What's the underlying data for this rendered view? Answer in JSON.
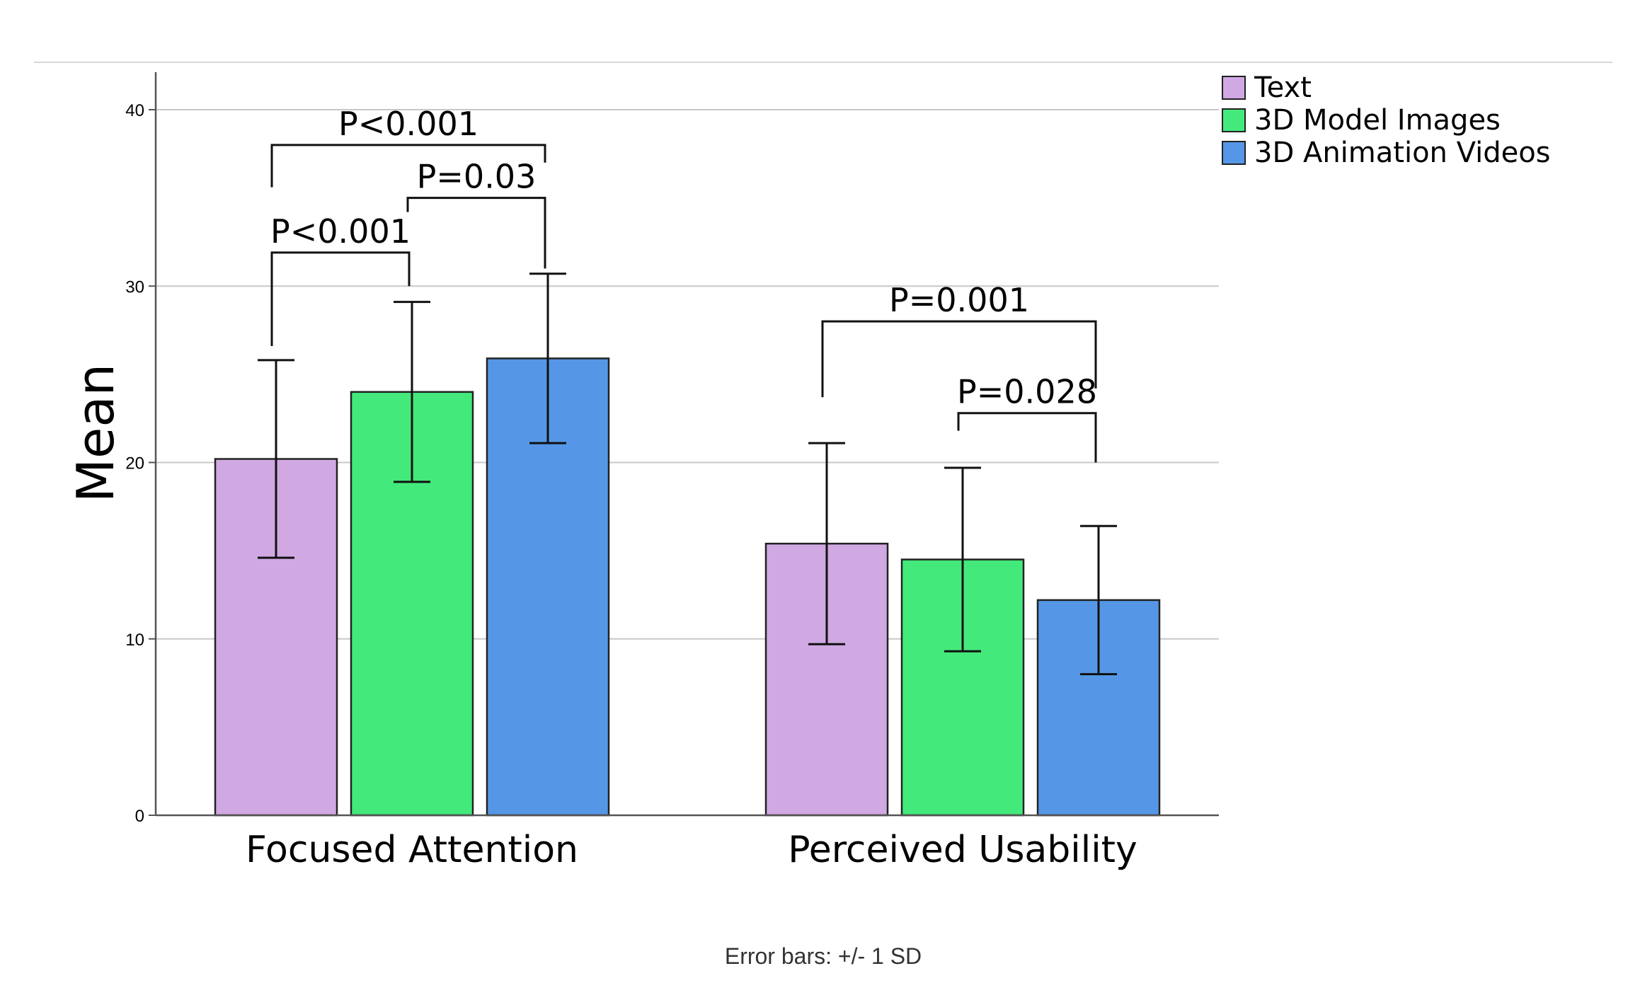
{
  "chart_data": {
    "type": "bar",
    "title": "",
    "xlabel": "",
    "ylabel": "Mean",
    "ylim": [
      0,
      40
    ],
    "yticks": [
      "0",
      "10",
      "20",
      "30",
      "40"
    ],
    "ytick_values": [
      0,
      10,
      20,
      30,
      40
    ],
    "grid": true,
    "legend_position": "top-right",
    "categories": [
      "Focused Attention",
      "Perceived Usability"
    ],
    "series": [
      {
        "name": "Text",
        "color": "#d0a8e2",
        "values": [
          20.2,
          15.4
        ],
        "sd": [
          5.6,
          5.7
        ]
      },
      {
        "name": "3D Model Images",
        "color": "#43e97b",
        "values": [
          24.0,
          14.5
        ],
        "sd": [
          5.1,
          5.2
        ]
      },
      {
        "name": "3D Animation Videos",
        "color": "#5597e6",
        "values": [
          25.9,
          12.2
        ],
        "sd": [
          4.8,
          4.2
        ]
      }
    ],
    "annotations": [
      {
        "label": "P<0.001",
        "category": 0,
        "from": 0,
        "to": 2,
        "level": 38.0,
        "left_drop": 35.6,
        "right_drop": 37.0
      },
      {
        "label": "P=0.03",
        "category": 0,
        "from": 1,
        "to": 2,
        "level": 35.0,
        "left_drop": 34.2,
        "right_drop": 31.0
      },
      {
        "label": "P<0.001",
        "category": 0,
        "from": 0,
        "to": 1,
        "level": 31.9,
        "left_drop": 26.6,
        "right_drop": 30.0
      },
      {
        "label": "P=0.001",
        "category": 1,
        "from": 0,
        "to": 2,
        "level": 28.0,
        "left_drop": 23.7,
        "right_drop": 24.2
      },
      {
        "label": "P=0.028",
        "category": 1,
        "from": 1,
        "to": 2,
        "level": 22.8,
        "left_drop": 21.8,
        "right_drop": 20.0
      }
    ],
    "footnote": "Error bars: +/- 1 SD"
  }
}
